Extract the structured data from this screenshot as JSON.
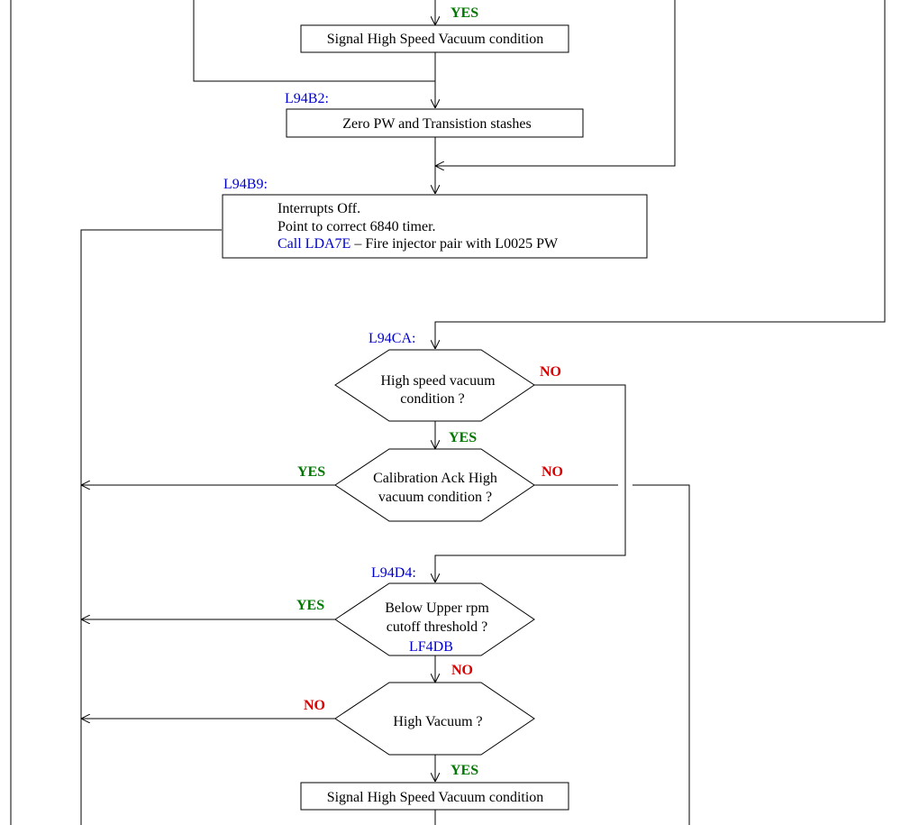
{
  "colors": {
    "label": "#0000cc",
    "yes": "#007700",
    "no": "#dd0000",
    "line": "#000000"
  },
  "labels": {
    "l94b2": "L94B2:",
    "l94b9": "L94B9:",
    "l94ca": "L94CA:",
    "l94d4": "L94D4:",
    "lf4db": "LF4DB"
  },
  "boxes": {
    "signal_top": "Signal High Speed Vacuum condition",
    "zero_pw": "Zero PW and Transistion stashes",
    "interrupts_line1": "Interrupts Off.",
    "interrupts_line2": "Point to correct 6840 timer.",
    "interrupts_call": "Call LDA7E",
    "interrupts_call_rest": " – Fire injector pair with L0025 PW",
    "signal_bottom": "Signal High Speed Vacuum condition"
  },
  "decisions": {
    "high_speed_line1": "High speed vacuum",
    "high_speed_line2": "condition ?",
    "calibration_line1": "Calibration Ack High",
    "calibration_line2": "vacuum condition ?",
    "below_upper_line1": "Below Upper rpm",
    "below_upper_line2": "cutoff threshold ?",
    "high_vacuum": "High Vacuum ?"
  },
  "branches": {
    "yes_top": "YES",
    "no_high_speed": "NO",
    "yes_high_speed": "YES",
    "yes_calibration": "YES",
    "no_calibration": "NO",
    "yes_below_upper": "YES",
    "no_below_upper": "NO",
    "no_high_vacuum": "NO",
    "yes_high_vacuum": "YES"
  }
}
